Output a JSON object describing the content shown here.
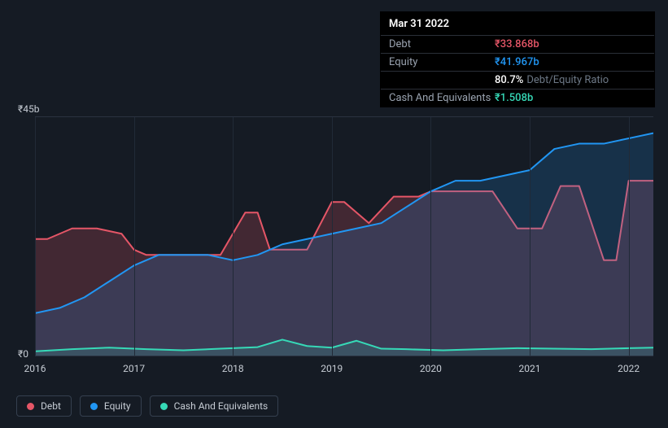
{
  "tooltip": {
    "date": "Mar 31 2022",
    "rows": [
      {
        "label": "Debt",
        "value": "₹33.868b",
        "color": "#e55667",
        "extra": ""
      },
      {
        "label": "Equity",
        "value": "₹41.967b",
        "color": "#2196f3",
        "extra": ""
      },
      {
        "label": "",
        "value": "80.7%",
        "color": "#ffffff",
        "extra": "Debt/Equity Ratio"
      },
      {
        "label": "Cash And Equivalents",
        "value": "₹1.508b",
        "color": "#36d9b7",
        "extra": ""
      }
    ]
  },
  "chart": {
    "type": "area",
    "y_top_label": "₹45b",
    "y_bottom_label": "₹0",
    "ymin": 0,
    "ymax": 45,
    "x_ticks": [
      "2016",
      "2017",
      "2018",
      "2019",
      "2020",
      "2021",
      "2022"
    ],
    "x_positions": [
      0,
      16.0,
      32.0,
      48.0,
      64.0,
      80.0,
      96.0
    ],
    "background": "#151b24",
    "grid_color": "#212a37",
    "series": [
      {
        "name": "Debt",
        "stroke": "#e55667",
        "fill": "#e55667",
        "fill_opacity": 0.22,
        "width": 2,
        "x": [
          0,
          2,
          6,
          10,
          14,
          16,
          18,
          24,
          30,
          34,
          36,
          38,
          40,
          44,
          48,
          50,
          54,
          58,
          62,
          64,
          68,
          74,
          78,
          82,
          85,
          88,
          92,
          94,
          96,
          100
        ],
        "y": [
          22,
          22,
          24,
          24,
          23,
          20,
          19,
          19,
          19,
          27,
          27,
          20,
          20,
          20,
          29,
          29,
          25,
          30,
          30,
          31,
          31,
          31,
          24,
          24,
          32,
          32,
          18,
          18,
          33,
          33
        ]
      },
      {
        "name": "Equity",
        "stroke": "#2196f3",
        "fill": "#2196f3",
        "fill_opacity": 0.18,
        "width": 2,
        "x": [
          0,
          4,
          8,
          12,
          16,
          20,
          24,
          28,
          32,
          36,
          40,
          44,
          48,
          52,
          56,
          60,
          64,
          68,
          72,
          76,
          80,
          84,
          88,
          92,
          96,
          100
        ],
        "y": [
          8,
          9,
          11,
          14,
          17,
          19,
          19,
          19,
          18,
          19,
          21,
          22,
          23,
          24,
          25,
          28,
          31,
          33,
          33,
          34,
          35,
          39,
          40,
          40,
          41,
          42
        ]
      },
      {
        "name": "Cash And Equivalents",
        "stroke": "#36d9b7",
        "fill": "#36d9b7",
        "fill_opacity": 0.15,
        "width": 2,
        "x": [
          0,
          6,
          12,
          18,
          24,
          30,
          36,
          40,
          44,
          48,
          52,
          56,
          60,
          66,
          72,
          78,
          84,
          90,
          96,
          100
        ],
        "y": [
          0.8,
          1.2,
          1.5,
          1.2,
          1.0,
          1.3,
          1.6,
          3.0,
          1.8,
          1.5,
          2.8,
          1.3,
          1.2,
          1.0,
          1.2,
          1.4,
          1.3,
          1.2,
          1.4,
          1.5
        ]
      }
    ]
  },
  "legend": [
    {
      "label": "Debt",
      "color": "#e55667"
    },
    {
      "label": "Equity",
      "color": "#2196f3"
    },
    {
      "label": "Cash And Equivalents",
      "color": "#36d9b7"
    }
  ]
}
